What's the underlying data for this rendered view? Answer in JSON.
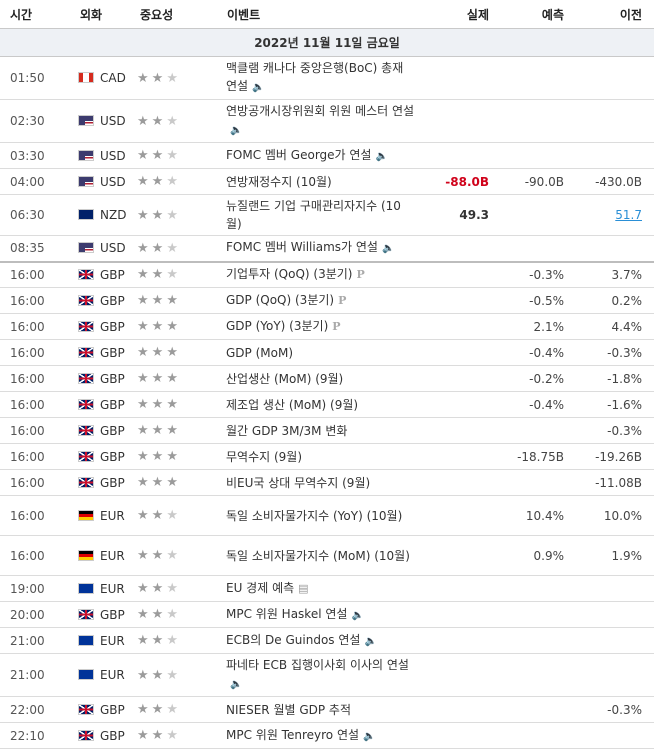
{
  "headers": {
    "time": "시간",
    "currency": "외화",
    "importance": "중요성",
    "event": "이벤트",
    "actual": "실제",
    "forecast": "예측",
    "previous": "이전"
  },
  "date_label": "2022년 11월 11일 금요일",
  "rows": [
    {
      "time": "01:50",
      "flag": "ca",
      "cur": "CAD",
      "stars": 2,
      "event": "맥클램 캐나다 중앙은행(BoC) 총재 연설",
      "icon": "speaker",
      "actual": "",
      "actual_style": "",
      "forecast": "",
      "previous": ""
    },
    {
      "time": "02:30",
      "flag": "us",
      "cur": "USD",
      "stars": 2,
      "event": "연방공개시장위원회 위원 메스터 연설",
      "icon": "speaker",
      "actual": "",
      "actual_style": "",
      "forecast": "",
      "previous": ""
    },
    {
      "time": "03:30",
      "flag": "us",
      "cur": "USD",
      "stars": 2,
      "event": "FOMC 멤버 George가 연설",
      "icon": "speaker",
      "actual": "",
      "actual_style": "",
      "forecast": "",
      "previous": ""
    },
    {
      "time": "04:00",
      "flag": "us",
      "cur": "USD",
      "stars": 2,
      "event": "연방재정수지 (10월)",
      "icon": "",
      "actual": "-88.0B",
      "actual_style": "neg",
      "forecast": "-90.0B",
      "previous": "-430.0B"
    },
    {
      "time": "06:30",
      "flag": "nz",
      "cur": "NZD",
      "stars": 2,
      "event": "뉴질랜드 기업 구매관리자지수 (10월)",
      "icon": "",
      "actual": "49.3",
      "actual_style": "",
      "forecast": "",
      "previous": "51.7",
      "previous_link": true
    },
    {
      "time": "08:35",
      "flag": "us",
      "cur": "USD",
      "stars": 2,
      "event": "FOMC 멤버 Williams가 연설",
      "icon": "speaker",
      "actual": "",
      "actual_style": "",
      "forecast": "",
      "previous": "",
      "sep": true
    },
    {
      "time": "16:00",
      "flag": "gb",
      "cur": "GBP",
      "stars": 2,
      "event": "기업투자 (QoQ) (3분기)",
      "icon": "p",
      "actual": "",
      "actual_style": "",
      "forecast": "-0.3%",
      "previous": "3.7%"
    },
    {
      "time": "16:00",
      "flag": "gb",
      "cur": "GBP",
      "stars": 3,
      "event": "GDP (QoQ) (3분기)",
      "icon": "p",
      "actual": "",
      "actual_style": "",
      "forecast": "-0.5%",
      "previous": "0.2%"
    },
    {
      "time": "16:00",
      "flag": "gb",
      "cur": "GBP",
      "stars": 3,
      "event": "GDP (YoY) (3분기)",
      "icon": "p",
      "actual": "",
      "actual_style": "",
      "forecast": "2.1%",
      "previous": "4.4%"
    },
    {
      "time": "16:00",
      "flag": "gb",
      "cur": "GBP",
      "stars": 3,
      "event": "GDP (MoM)",
      "icon": "",
      "actual": "",
      "actual_style": "",
      "forecast": "-0.4%",
      "previous": "-0.3%"
    },
    {
      "time": "16:00",
      "flag": "gb",
      "cur": "GBP",
      "stars": 3,
      "event": "산업생산 (MoM) (9월)",
      "icon": "",
      "actual": "",
      "actual_style": "",
      "forecast": "-0.2%",
      "previous": "-1.8%"
    },
    {
      "time": "16:00",
      "flag": "gb",
      "cur": "GBP",
      "stars": 3,
      "event": "제조업 생산 (MoM) (9월)",
      "icon": "",
      "actual": "",
      "actual_style": "",
      "forecast": "-0.4%",
      "previous": "-1.6%"
    },
    {
      "time": "16:00",
      "flag": "gb",
      "cur": "GBP",
      "stars": 3,
      "event": "월간 GDP 3M/3M 변화",
      "icon": "",
      "actual": "",
      "actual_style": "",
      "forecast": "",
      "previous": "-0.3%"
    },
    {
      "time": "16:00",
      "flag": "gb",
      "cur": "GBP",
      "stars": 3,
      "event": "무역수지 (9월)",
      "icon": "",
      "actual": "",
      "actual_style": "",
      "forecast": "-18.75B",
      "previous": "-19.26B"
    },
    {
      "time": "16:00",
      "flag": "gb",
      "cur": "GBP",
      "stars": 3,
      "event": "비EU국 상대 무역수지 (9월)",
      "icon": "",
      "actual": "",
      "actual_style": "",
      "forecast": "",
      "previous": "-11.08B"
    },
    {
      "time": "16:00",
      "flag": "de",
      "cur": "EUR",
      "stars": 2,
      "event": "독일 소비자물가지수 (YoY) (10월)",
      "icon": "",
      "actual": "",
      "actual_style": "",
      "forecast": "10.4%",
      "previous": "10.0%"
    },
    {
      "time": "16:00",
      "flag": "de",
      "cur": "EUR",
      "stars": 2,
      "event": "독일 소비자물가지수 (MoM) (10월)",
      "icon": "",
      "actual": "",
      "actual_style": "",
      "forecast": "0.9%",
      "previous": "1.9%"
    },
    {
      "time": "19:00",
      "flag": "eu",
      "cur": "EUR",
      "stars": 2,
      "event": "EU 경제 예측",
      "icon": "doc",
      "actual": "",
      "actual_style": "",
      "forecast": "",
      "previous": ""
    },
    {
      "time": "20:00",
      "flag": "gb",
      "cur": "GBP",
      "stars": 2,
      "event": "MPC 위원 Haskel 연설",
      "icon": "speaker",
      "actual": "",
      "actual_style": "",
      "forecast": "",
      "previous": ""
    },
    {
      "time": "21:00",
      "flag": "eu",
      "cur": "EUR",
      "stars": 2,
      "event": "ECB의 De Guindos 연설",
      "icon": "speaker",
      "actual": "",
      "actual_style": "",
      "forecast": "",
      "previous": ""
    },
    {
      "time": "21:00",
      "flag": "eu",
      "cur": "EUR",
      "stars": 2,
      "event": "파네타 ECB 집행이사회 이사의 연설",
      "icon": "speaker",
      "actual": "",
      "actual_style": "",
      "forecast": "",
      "previous": ""
    },
    {
      "time": "22:00",
      "flag": "gb",
      "cur": "GBP",
      "stars": 2,
      "event": "NIESER 월별 GDP 추적",
      "icon": "",
      "actual": "",
      "actual_style": "",
      "forecast": "",
      "previous": "-0.3%"
    },
    {
      "time": "22:10",
      "flag": "gb",
      "cur": "GBP",
      "stars": 2,
      "event": "MPC 위원 Tenreyro 연설",
      "icon": "speaker",
      "actual": "",
      "actual_style": "",
      "forecast": "",
      "previous": ""
    }
  ],
  "colors": {
    "negative": "#d0021b",
    "link": "#2a8fd6",
    "date_bg": "#eef1f5"
  }
}
